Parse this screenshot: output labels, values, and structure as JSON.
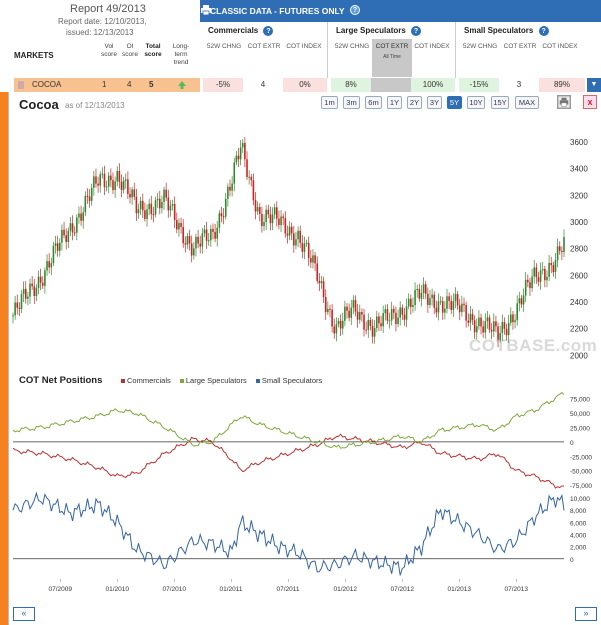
{
  "report": {
    "title": "Report 49/2013",
    "date": "Report date: 12/10/2013,",
    "issued": "issued: 12/13/2013",
    "markets_label": "MARKETS",
    "col_vol": "Vol score",
    "col_oi": "OI score",
    "col_total": "Total score",
    "col_trend": "Long-term trend"
  },
  "banner": {
    "title": "CLASSIC DATA - FUTURES ONLY",
    "help": "?"
  },
  "groups": [
    {
      "title": "Commercials",
      "subs": [
        "52W CHNG",
        "COT EXTR",
        "COT INDEX"
      ]
    },
    {
      "title": "Large Speculators",
      "subs": [
        "52W CHNG",
        "COT EXTR",
        "COT INDEX"
      ],
      "active_note": "All Time"
    },
    {
      "title": "Small Speculators",
      "subs": [
        "52W CHNG",
        "COT EXTR",
        "COT INDEX"
      ]
    }
  ],
  "row": {
    "name": "COCOA",
    "vol": "1",
    "oi": "4",
    "total": "5",
    "trend": "up-arrow-icon",
    "values": [
      "-5%",
      "4",
      "0%",
      "8%",
      "",
      "100%",
      "-15%",
      "3",
      "89%"
    ]
  },
  "chart": {
    "name": "Cocoa",
    "as_of": "as of 12/13/2013",
    "periods": [
      "1m",
      "3m",
      "6m",
      "1Y",
      "2Y",
      "3Y",
      "5Y",
      "10Y",
      "15Y",
      "MAX"
    ],
    "active_period": "5Y",
    "close": "x",
    "watermark": "COTBASE.com",
    "cot_title": "COT Net Positions",
    "legend": [
      "Commercials",
      "Large Speculators",
      "Small Speculators"
    ],
    "colors": {
      "commercials": "#b83232",
      "large": "#7fa83a",
      "small": "#3465a4",
      "up": "#2f8a2f",
      "down": "#cc2222"
    },
    "nav_left": "«",
    "nav_right": "»"
  },
  "chart_data": [
    {
      "type": "candlestick",
      "title": "Cocoa",
      "ylim": [
        1950,
        3750
      ],
      "yticks": [
        2000,
        2200,
        2400,
        2600,
        2800,
        3000,
        3200,
        3400,
        3600
      ],
      "x": [
        "2009-02",
        "2009-05",
        "2009-08",
        "2009-11",
        "2010-01",
        "2010-03",
        "2010-06",
        "2010-09",
        "2010-11",
        "2011-01",
        "2011-02",
        "2011-04",
        "2011-06",
        "2011-08",
        "2011-10",
        "2011-12",
        "2012-02",
        "2012-04",
        "2012-07",
        "2012-09",
        "2012-11",
        "2013-01",
        "2013-03",
        "2013-05",
        "2013-07",
        "2013-09",
        "2013-11",
        "2013-12"
      ],
      "close": [
        2300,
        2600,
        2950,
        3300,
        3350,
        3100,
        3150,
        2800,
        2900,
        3300,
        3550,
        3050,
        3000,
        2900,
        2600,
        2200,
        2350,
        2200,
        2350,
        2450,
        2400,
        2350,
        2250,
        2150,
        2350,
        2600,
        2700,
        2820
      ]
    },
    {
      "type": "line",
      "title": "COT Net Positions",
      "yticks": [
        -75000,
        -50000,
        -25000,
        0,
        25000,
        50000,
        75000
      ],
      "x": [
        "2009-02",
        "2009-05",
        "2009-08",
        "2009-11",
        "2010-01",
        "2010-03",
        "2010-06",
        "2010-09",
        "2010-11",
        "2011-01",
        "2011-02",
        "2011-04",
        "2011-06",
        "2011-08",
        "2011-10",
        "2011-12",
        "2012-02",
        "2012-04",
        "2012-07",
        "2012-09",
        "2012-11",
        "2013-01",
        "2013-03",
        "2013-05",
        "2013-07",
        "2013-09",
        "2013-11",
        "2013-12"
      ],
      "series": [
        {
          "name": "Commercials",
          "values": [
            -15000,
            -20000,
            -30000,
            -45000,
            -60000,
            -55000,
            -20000,
            5000,
            0,
            -30000,
            -50000,
            -35000,
            -25000,
            -15000,
            -5000,
            10000,
            5000,
            0,
            -10000,
            0,
            -20000,
            -25000,
            -30000,
            -20000,
            -50000,
            -60000,
            -75000,
            -80000
          ]
        },
        {
          "name": "Large Speculators",
          "values": [
            20000,
            25000,
            35000,
            45000,
            55000,
            50000,
            25000,
            -5000,
            0,
            30000,
            45000,
            30000,
            20000,
            10000,
            0,
            -10000,
            -5000,
            0,
            10000,
            0,
            20000,
            25000,
            30000,
            20000,
            45000,
            55000,
            75000,
            85000
          ]
        }
      ]
    },
    {
      "type": "line",
      "title": "",
      "yticks": [
        0,
        2000,
        4000,
        6000,
        8000,
        10000
      ],
      "x": [
        "2009-02",
        "2009-05",
        "2009-08",
        "2009-11",
        "2010-01",
        "2010-03",
        "2010-06",
        "2010-09",
        "2010-11",
        "2011-01",
        "2011-02",
        "2011-04",
        "2011-06",
        "2011-08",
        "2011-10",
        "2011-12",
        "2012-02",
        "2012-04",
        "2012-07",
        "2012-09",
        "2012-11",
        "2013-01",
        "2013-03",
        "2013-05",
        "2013-07",
        "2013-09",
        "2013-11",
        "2013-12"
      ],
      "xticks": [
        "07/2009",
        "01/2010",
        "07/2010",
        "01/2011",
        "07/2011",
        "01/2012",
        "07/2012",
        "01/2013",
        "07/2013"
      ],
      "series": [
        {
          "name": "Small Speculators",
          "values": [
            8000,
            10000,
            7500,
            9000,
            6000,
            1500,
            -1000,
            3000,
            2500,
            1000,
            6000,
            4000,
            2000,
            1000,
            -1500,
            -1000,
            500,
            -500,
            -1500,
            2000,
            8000,
            6000,
            4000,
            1500,
            3000,
            7000,
            10000,
            9000
          ]
        }
      ]
    }
  ]
}
